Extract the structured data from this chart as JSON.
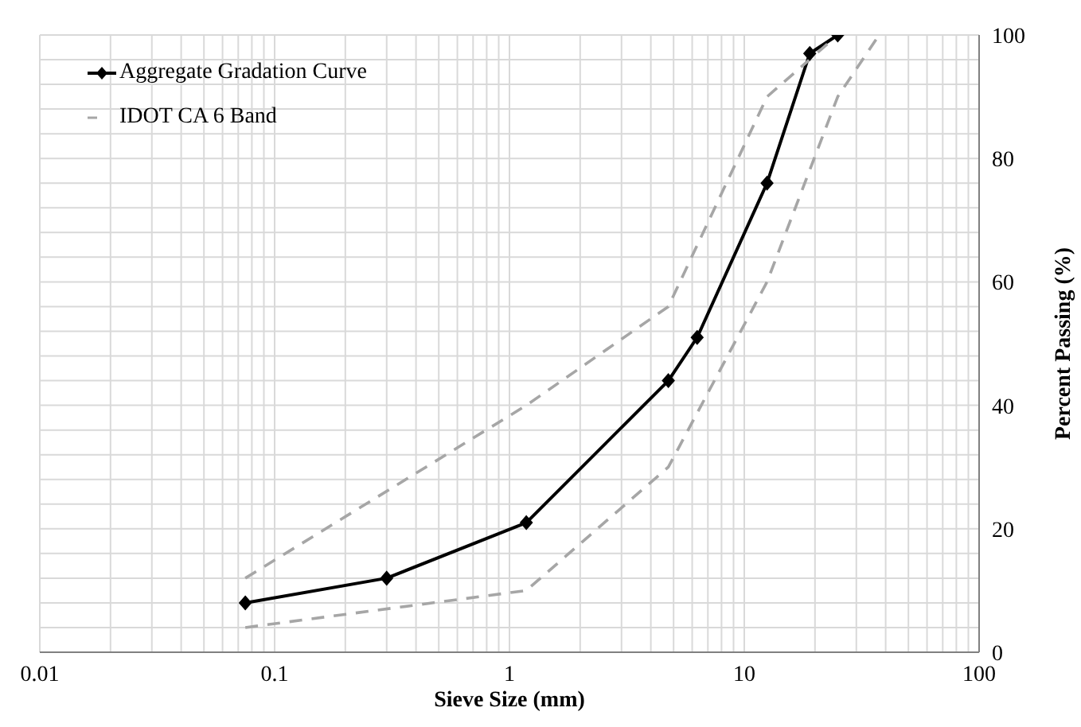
{
  "chart_data": {
    "type": "line",
    "xlabel": "Sieve Size (mm)",
    "ylabel": "Percent Passing (%)",
    "log": "x",
    "xlim": [
      0.01,
      100
    ],
    "xticks": [
      0.01,
      0.1,
      1,
      10,
      100
    ],
    "ylim": [
      0,
      100
    ],
    "yticks": [
      0,
      20,
      40,
      60,
      80,
      100
    ],
    "grid": true,
    "legend": "top left",
    "series": [
      {
        "name": "Aggregate Gradation Curve",
        "color": "#000000",
        "marker": "diamond",
        "line_style": "solid",
        "x": [
          0.075,
          0.3,
          1.18,
          4.75,
          6.3,
          12.5,
          19,
          25
        ],
        "values": [
          8,
          12,
          21,
          44,
          51,
          76,
          97,
          100
        ]
      },
      {
        "name": "IDOT CA 6 Band",
        "color": "#a6a6a6",
        "marker": "none",
        "line_style": "dashed",
        "x": [
          0.075,
          1.18,
          4.75,
          12.5,
          25
        ],
        "values": [
          12,
          40,
          56,
          90,
          100
        ]
      },
      {
        "color": "#a6a6a6",
        "marker": "none",
        "line_style": "dashed",
        "x": [
          0.075,
          1.18,
          4.75,
          12.5,
          25,
          37.5
        ],
        "values": [
          4,
          10,
          30,
          60,
          90,
          100
        ]
      }
    ]
  }
}
